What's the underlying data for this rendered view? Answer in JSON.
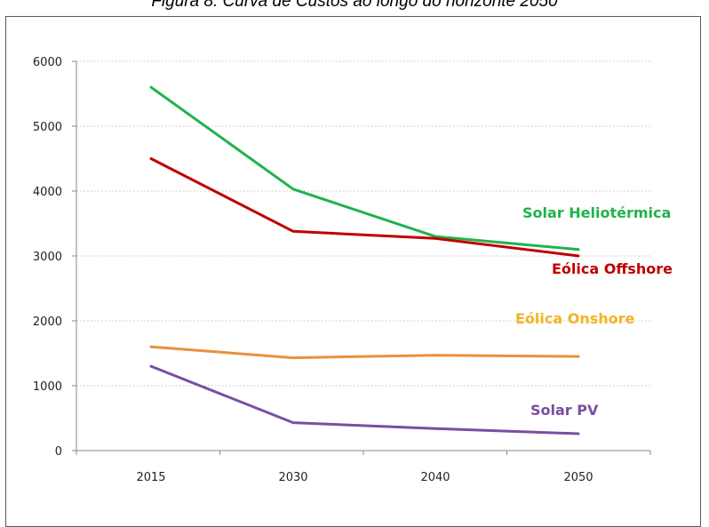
{
  "caption": "Figura 8: Curva de Custos ao longo do horizonte 2050",
  "chart_data": {
    "type": "line",
    "title": "",
    "xlabel": "",
    "ylabel": "",
    "categories": [
      "2015",
      "2030",
      "2040",
      "2050"
    ],
    "ylim": [
      0,
      6000
    ],
    "yticks": [
      0,
      1000,
      2000,
      3000,
      4000,
      5000,
      6000
    ],
    "grid": true,
    "legend": "inline-right",
    "series": [
      {
        "name": "Solar Heliotérmica",
        "color": "#21b24b",
        "values": [
          5600,
          4030,
          3300,
          3100
        ]
      },
      {
        "name": "Eólica Offshore",
        "color": "#c00000",
        "values": [
          4500,
          3380,
          3270,
          3000
        ]
      },
      {
        "name": "Eólica Onshore",
        "color": "#e8913a",
        "label_color": "#f5b324",
        "values": [
          1600,
          1430,
          1470,
          1450
        ]
      },
      {
        "name": "Solar PV",
        "color": "#7b4ea0",
        "values": [
          1300,
          430,
          340,
          260
        ]
      }
    ]
  }
}
